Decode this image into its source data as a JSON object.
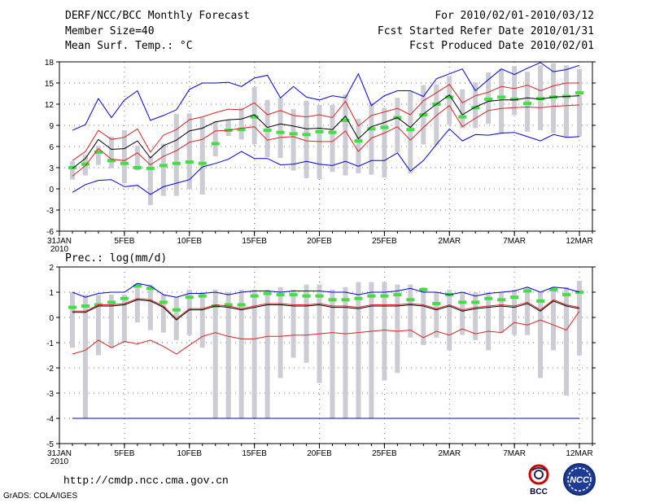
{
  "header": {
    "title": "DERF/NCC/BCC Monthly Forecast",
    "member_size": "Member Size=40",
    "variable": "Mean Surf. Temp.: °C",
    "period": "For 2010/02/01-2010/03/12",
    "started": "Fcst Started Refer Date 2010/01/31",
    "produced": "Fcst Produced Date 2010/02/01"
  },
  "footer": {
    "url": "http://cmdp.ncc.cma.gov.cn",
    "grads": "GrADS: COLA/IGES",
    "bcc_logo_text": "BCC",
    "ncc_logo_text": "NCC"
  },
  "colors": {
    "spread": "#ccccd4",
    "median": "#44dd44",
    "mean": "#000000",
    "sigma": "#dd2222",
    "minmax": "#0000dd",
    "grid": "#777777"
  },
  "chart_data": [
    {
      "type": "box-line",
      "title": "Mean Surf. Temp.: °C",
      "xlabel": "",
      "ylabel": "°C",
      "ylim": [
        -6,
        18
      ],
      "yticks": [
        -6,
        -3,
        0,
        3,
        6,
        9,
        12,
        15,
        18
      ],
      "x_tick_days": [
        0,
        5,
        10,
        15,
        20,
        25,
        30,
        35,
        40
      ],
      "x_tick_labels": [
        "31JAN",
        "5FEB",
        "10FEB",
        "15FEB",
        "20FEB",
        "25FEB",
        "2MAR",
        "7MAR",
        "12MAR"
      ],
      "x_year_label": "2010",
      "days": [
        1,
        2,
        3,
        4,
        5,
        6,
        7,
        8,
        9,
        10,
        11,
        12,
        13,
        14,
        15,
        16,
        17,
        18,
        19,
        20,
        21,
        22,
        23,
        24,
        25,
        26,
        27,
        28,
        29,
        30,
        31,
        32,
        33,
        34,
        35,
        36,
        37,
        38,
        39,
        40
      ],
      "series": [
        {
          "name": "max",
          "values": [
            8.3,
            9.1,
            12.8,
            10.1,
            12.6,
            13.9,
            9.7,
            10.4,
            11.2,
            14.1,
            15.0,
            15.0,
            15.1,
            14.5,
            15.7,
            16.1,
            12.9,
            14.5,
            13.0,
            12.6,
            13.2,
            12.9,
            16.3,
            11.8,
            13.2,
            13.9,
            13.9,
            13.1,
            15.6,
            16.3,
            17.0,
            13.9,
            15.5,
            17.0,
            16.2,
            17.1,
            17.9,
            16.6,
            16.9,
            17.5
          ]
        },
        {
          "name": "mean_plus_sigma",
          "values": [
            4.0,
            5.3,
            8.3,
            7.0,
            7.3,
            8.5,
            5.2,
            7.6,
            8.4,
            9.8,
            10.2,
            10.8,
            11.3,
            11.2,
            12.2,
            10.5,
            11.1,
            10.4,
            10.2,
            10.5,
            10.1,
            12.4,
            8.9,
            10.4,
            10.9,
            11.4,
            10.5,
            12.5,
            13.6,
            14.8,
            12.2,
            13.2,
            13.7,
            14.5,
            14.2,
            14.7,
            13.9,
            14.6,
            15.0,
            15.0
          ]
        },
        {
          "name": "mean",
          "values": [
            2.9,
            4.3,
            7.0,
            5.6,
            5.7,
            6.8,
            4.4,
            6.1,
            6.9,
            8.2,
            8.6,
            9.5,
            9.8,
            9.9,
            10.5,
            8.7,
            9.2,
            8.9,
            8.5,
            8.6,
            8.4,
            10.3,
            7.1,
            8.8,
            9.4,
            10.1,
            8.7,
            10.6,
            12.0,
            13.3,
            10.5,
            11.6,
            12.4,
            12.6,
            12.6,
            12.9,
            12.7,
            13.0,
            13.1,
            13.2
          ]
        },
        {
          "name": "mean_minus_sigma",
          "values": [
            1.8,
            3.3,
            5.7,
            4.2,
            4.0,
            5.1,
            3.4,
            4.6,
            5.4,
            6.6,
            7.0,
            8.2,
            8.3,
            8.6,
            8.8,
            6.9,
            7.3,
            7.4,
            6.8,
            6.7,
            6.7,
            8.2,
            5.3,
            7.2,
            7.9,
            8.8,
            6.9,
            8.7,
            10.4,
            11.8,
            8.8,
            10.0,
            11.1,
            11.4,
            11.5,
            11.6,
            11.5,
            11.7,
            11.8,
            11.9
          ]
        },
        {
          "name": "min",
          "values": [
            -0.5,
            0.6,
            1.2,
            1.3,
            0.3,
            0.5,
            -0.8,
            0.3,
            0.8,
            1.3,
            3.1,
            3.6,
            4.2,
            5.3,
            4.3,
            4.3,
            3.4,
            3.5,
            3.9,
            3.5,
            3.3,
            3.9,
            3.2,
            4.0,
            4.0,
            5.1,
            2.5,
            4.0,
            6.3,
            8.5,
            6.8,
            7.7,
            7.6,
            7.9,
            8.0,
            7.4,
            6.8,
            7.7,
            7.3,
            7.4
          ]
        },
        {
          "name": "median",
          "values": [
            3.0,
            3.5,
            5.2,
            4.0,
            3.6,
            3.0,
            2.9,
            3.3,
            3.6,
            3.8,
            3.6,
            6.4,
            8.3,
            8.4,
            10.2,
            8.3,
            8.0,
            7.8,
            7.7,
            8.1,
            8.0,
            9.7,
            6.8,
            8.5,
            8.7,
            10.1,
            8.4,
            10.5,
            12.0,
            13.0,
            10.2,
            11.5,
            12.7,
            13.0,
            12.7,
            12.1,
            12.8,
            13.0,
            13.1,
            13.6
          ]
        },
        {
          "name": "spread_low",
          "values": [
            1.3,
            1.9,
            3.4,
            2.9,
            0.8,
            2.6,
            -2.3,
            -1.0,
            -1.0,
            0.0,
            -0.8,
            4.6,
            7.5,
            7.0,
            6.3,
            4.5,
            4.4,
            2.6,
            1.5,
            1.4,
            2.4,
            1.9,
            2.2,
            2.0,
            1.6,
            5.2,
            2.2,
            6.3,
            6.2,
            9.1,
            8.6,
            8.6,
            9.2,
            7.8,
            10.5,
            8.1,
            8.3,
            7.9,
            7.3,
            7.4
          ]
        },
        {
          "name": "spread_high",
          "values": [
            3.9,
            4.8,
            6.1,
            7.4,
            8.3,
            6.1,
            4.6,
            6.4,
            10.6,
            10.7,
            10.1,
            9.6,
            9.8,
            11.5,
            14.4,
            12.6,
            12.9,
            11.3,
            12.5,
            11.9,
            11.9,
            13.4,
            9.9,
            12.2,
            11.5,
            12.9,
            13.8,
            14.7,
            14.8,
            16.0,
            14.1,
            15.1,
            16.5,
            17.0,
            17.4,
            16.6,
            17.5,
            17.8,
            17.5,
            17.0
          ]
        }
      ]
    },
    {
      "type": "box-line",
      "title": "Prec.: log(mm/d)",
      "xlabel": "",
      "ylabel": "log(mm/d)",
      "ylim": [
        -5,
        2
      ],
      "yticks": [
        -5,
        -4,
        -3,
        -2,
        -1,
        0,
        1,
        2
      ],
      "x_tick_days": [
        0,
        5,
        10,
        15,
        20,
        25,
        30,
        35,
        40
      ],
      "x_tick_labels": [
        "31JAN",
        "5FEB",
        "10FEB",
        "15FEB",
        "20FEB",
        "25FEB",
        "2MAR",
        "7MAR",
        "12MAR"
      ],
      "x_year_label": "2010",
      "days": [
        1,
        2,
        3,
        4,
        5,
        6,
        7,
        8,
        9,
        10,
        11,
        12,
        13,
        14,
        15,
        16,
        17,
        18,
        19,
        20,
        21,
        22,
        23,
        24,
        25,
        26,
        27,
        28,
        29,
        30,
        31,
        32,
        33,
        34,
        35,
        36,
        37,
        38,
        39,
        40
      ],
      "series": [
        {
          "name": "max",
          "values": [
            1.0,
            0.8,
            0.95,
            1.0,
            1.0,
            1.35,
            1.25,
            0.9,
            0.8,
            0.95,
            0.95,
            1.0,
            0.9,
            1.0,
            1.05,
            1.05,
            1.0,
            1.05,
            1.05,
            1.05,
            1.0,
            1.0,
            0.9,
            1.0,
            1.0,
            1.05,
            1.15,
            1.0,
            1.0,
            0.9,
            1.0,
            0.85,
            0.95,
            1.0,
            1.05,
            1.2,
            1.0,
            1.2,
            1.15,
            1.0
          ]
        },
        {
          "name": "mean_plus_sigma",
          "values": [
            0.25,
            0.25,
            0.5,
            0.5,
            0.55,
            0.75,
            0.7,
            0.45,
            -0.05,
            0.35,
            0.35,
            0.5,
            0.45,
            0.35,
            0.45,
            0.55,
            0.55,
            0.5,
            0.5,
            0.55,
            0.45,
            0.45,
            0.4,
            0.5,
            0.5,
            0.5,
            0.55,
            0.5,
            0.35,
            0.5,
            0.3,
            0.4,
            0.45,
            0.5,
            0.45,
            0.6,
            0.3,
            0.7,
            0.5,
            0.4
          ]
        },
        {
          "name": "mean",
          "values": [
            0.2,
            0.2,
            0.45,
            0.45,
            0.5,
            0.7,
            0.65,
            0.4,
            -0.1,
            0.3,
            0.3,
            0.45,
            0.4,
            0.3,
            0.4,
            0.5,
            0.5,
            0.45,
            0.45,
            0.5,
            0.4,
            0.4,
            0.35,
            0.45,
            0.45,
            0.45,
            0.5,
            0.45,
            0.3,
            0.45,
            0.25,
            0.35,
            0.4,
            0.45,
            0.4,
            0.55,
            0.25,
            0.65,
            0.45,
            0.35
          ]
        },
        {
          "name": "mean_minus_sigma",
          "values": [
            -1.45,
            -1.3,
            -0.9,
            -1.2,
            -0.95,
            -1.05,
            -0.9,
            -1.15,
            -1.45,
            -1.1,
            -0.75,
            -0.6,
            -0.75,
            -0.85,
            -0.85,
            -0.75,
            -0.75,
            -0.7,
            -0.7,
            -0.65,
            -0.6,
            -0.65,
            -0.6,
            -0.55,
            -0.5,
            -0.55,
            -0.5,
            -0.8,
            -0.55,
            -0.7,
            -0.45,
            -0.65,
            -0.55,
            -0.6,
            -0.2,
            -0.3,
            -0.1,
            -0.3,
            -0.5,
            0.25
          ]
        },
        {
          "name": "min",
          "values": [
            -4.0,
            -4.0,
            -4.0,
            -4.0,
            -4.0,
            -4.0,
            -4.0,
            -4.0,
            -4.0,
            -4.0,
            -4.0,
            -4.0,
            -4.0,
            -4.0,
            -4.0,
            -4.0,
            -4.0,
            -4.0,
            -4.0,
            -4.0,
            -4.0,
            -4.0,
            -4.0,
            -4.0,
            -4.0,
            -4.0,
            -4.0,
            -4.0,
            -4.0,
            -4.0,
            -4.0,
            -4.0,
            -4.0,
            -4.0,
            -4.0,
            -4.0,
            -4.0,
            -4.0,
            -4.0,
            -4.0
          ]
        },
        {
          "name": "median",
          "values": [
            0.4,
            0.45,
            0.5,
            0.6,
            0.75,
            1.25,
            1.15,
            0.6,
            0.3,
            0.8,
            0.85,
            0.45,
            0.5,
            0.5,
            0.85,
            0.95,
            0.9,
            0.9,
            0.85,
            0.85,
            0.7,
            0.7,
            0.75,
            0.85,
            0.85,
            0.9,
            0.7,
            1.1,
            0.55,
            0.9,
            0.6,
            0.6,
            0.75,
            0.7,
            0.8,
            1.05,
            0.65,
            1.1,
            0.9,
            1.0
          ]
        },
        {
          "name": "spread_low",
          "values": [
            -1.2,
            -4.0,
            -1.5,
            -1.2,
            -1.0,
            -0.2,
            -0.5,
            -0.6,
            -0.9,
            -0.7,
            -1.2,
            -4.0,
            -4.0,
            -4.0,
            -4.0,
            -4.0,
            -2.4,
            -1.6,
            -1.8,
            -2.6,
            -4.0,
            -4.0,
            -4.0,
            -4.0,
            -2.5,
            -2.2,
            -0.8,
            -1.1,
            -0.8,
            -1.3,
            -0.7,
            -0.9,
            -1.3,
            -0.6,
            -0.7,
            -0.7,
            -2.4,
            -1.3,
            -3.1,
            -1.5
          ]
        },
        {
          "name": "spread_high",
          "values": [
            1.0,
            0.9,
            0.9,
            0.9,
            0.9,
            1.35,
            1.3,
            0.9,
            0.8,
            1.1,
            1.0,
            1.1,
            1.0,
            1.1,
            1.1,
            1.1,
            1.2,
            1.1,
            1.3,
            1.3,
            1.1,
            1.2,
            1.4,
            1.4,
            1.4,
            1.3,
            1.3,
            1.2,
            1.0,
            1.1,
            1.0,
            1.0,
            1.0,
            1.0,
            1.1,
            1.2,
            1.0,
            1.2,
            1.2,
            1.45
          ]
        }
      ]
    }
  ]
}
